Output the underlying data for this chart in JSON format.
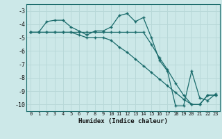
{
  "xlabel": "Humidex (Indice chaleur)",
  "bg_color": "#cce8e8",
  "grid_color": "#b8d8d8",
  "line_color": "#1a6b6b",
  "xlim": [
    -0.5,
    23.5
  ],
  "ylim": [
    -10.5,
    -2.5
  ],
  "yticks": [
    -10,
    -9,
    -8,
    -7,
    -6,
    -5,
    -4,
    -3
  ],
  "xticks": [
    0,
    1,
    2,
    3,
    4,
    5,
    6,
    7,
    8,
    9,
    10,
    11,
    12,
    13,
    14,
    15,
    16,
    17,
    18,
    19,
    20,
    21,
    22,
    23
  ],
  "series1_x": [
    0,
    1,
    2,
    3,
    4,
    5,
    6,
    7,
    8,
    9,
    10,
    11,
    12,
    13,
    14,
    15,
    16,
    17,
    18,
    19,
    20,
    21,
    22,
    23
  ],
  "series1_y": [
    -4.6,
    -4.6,
    -3.8,
    -3.7,
    -3.7,
    -4.2,
    -4.5,
    -4.8,
    -4.5,
    -4.5,
    -4.2,
    -3.35,
    -3.2,
    -3.8,
    -3.5,
    -5.0,
    -6.7,
    -7.5,
    -10.1,
    -10.1,
    -7.5,
    -9.5,
    -9.7,
    -9.2
  ],
  "series2_x": [
    0,
    1,
    2,
    3,
    4,
    5,
    6,
    7,
    8,
    9,
    10,
    11,
    12,
    13,
    14,
    15,
    16,
    17,
    18,
    19,
    20,
    21,
    22,
    23
  ],
  "series2_y": [
    -4.6,
    -4.6,
    -4.6,
    -4.6,
    -4.6,
    -4.6,
    -4.8,
    -5.0,
    -5.0,
    -5.0,
    -5.2,
    -5.7,
    -6.1,
    -6.6,
    -7.1,
    -7.6,
    -8.1,
    -8.6,
    -9.1,
    -9.6,
    -10.0,
    -10.0,
    -9.3,
    -9.3
  ],
  "series3_x": [
    0,
    1,
    2,
    3,
    4,
    5,
    6,
    7,
    8,
    9,
    10,
    11,
    12,
    13,
    14,
    15,
    16,
    17,
    18,
    19,
    20,
    21,
    22,
    23
  ],
  "series3_y": [
    -4.6,
    -4.6,
    -4.6,
    -4.6,
    -4.6,
    -4.6,
    -4.6,
    -4.6,
    -4.6,
    -4.6,
    -4.6,
    -4.6,
    -4.6,
    -4.6,
    -4.6,
    -5.5,
    -6.5,
    -7.4,
    -8.4,
    -9.3,
    -10.0,
    -10.0,
    -9.3,
    -9.3
  ]
}
